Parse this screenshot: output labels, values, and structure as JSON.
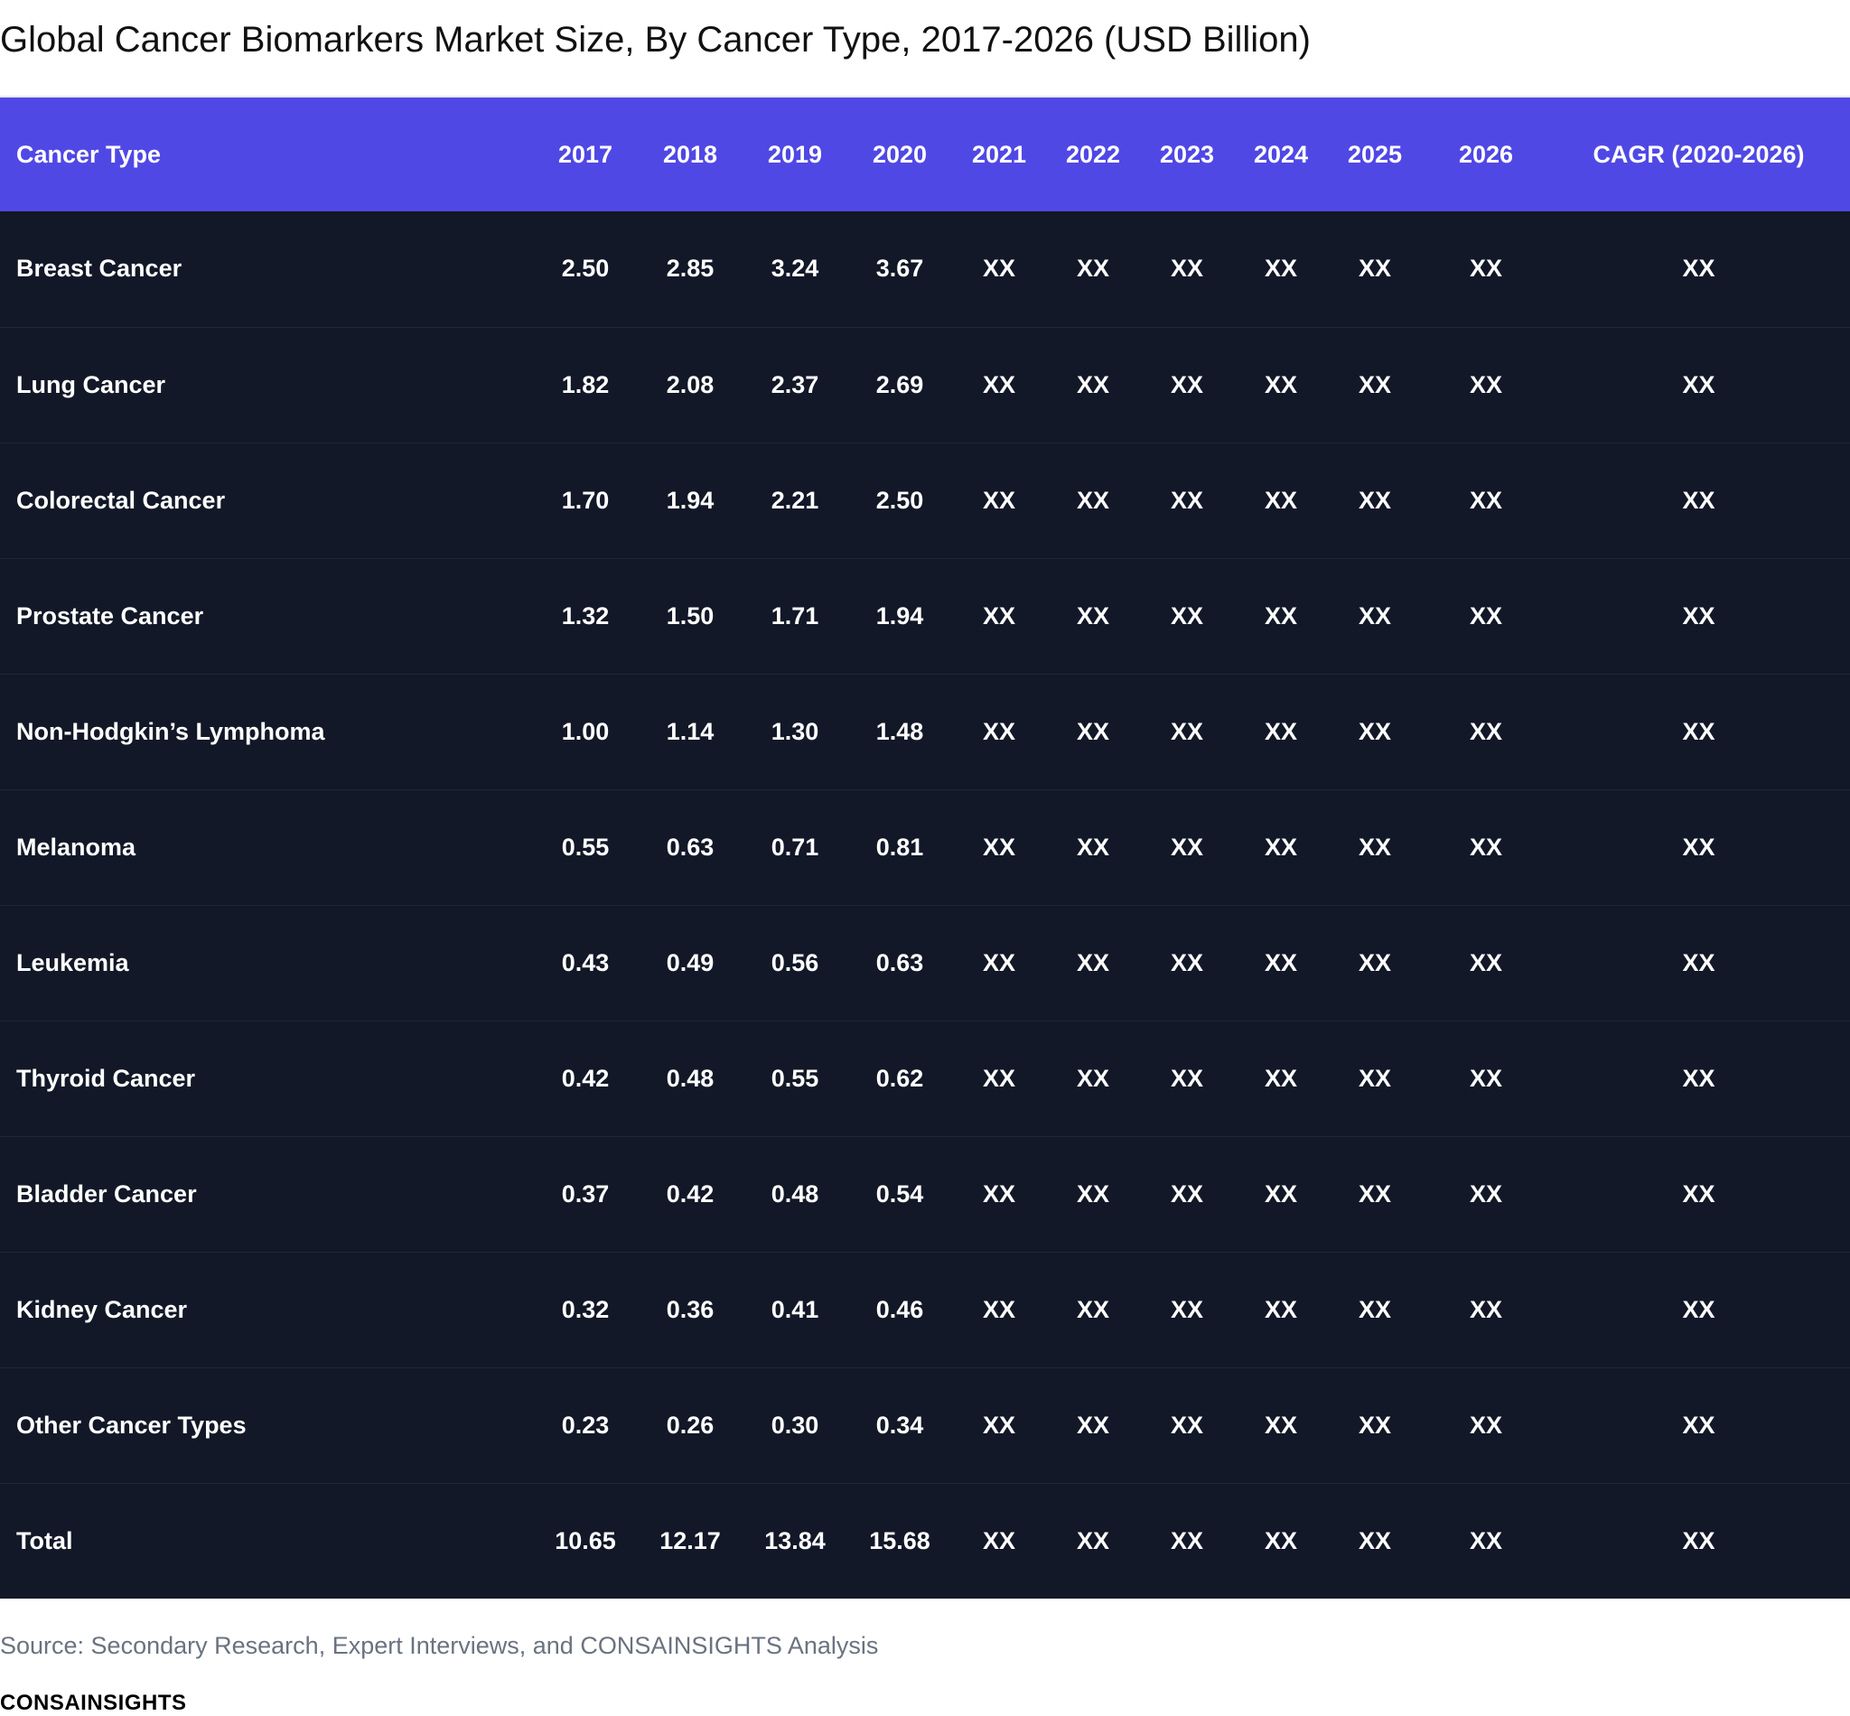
{
  "title": "Global Cancer Biomarkers Market Size, By Cancer Type, 2017-2026 (USD Billion)",
  "source": "Source: Secondary Research, Expert Interviews, and CONSAINSIGHTS Analysis",
  "brand": "CONSAINSIGHTS",
  "colors": {
    "header_bg": "#5048e5",
    "body_bg": "#121827",
    "text": "#ffffff",
    "source_text": "#6b7280"
  },
  "chart_data": {
    "type": "table",
    "title": "Global Cancer Biomarkers Market Size, By Cancer Type, 2017-2026 (USD Billion)",
    "columns": [
      "Cancer Type",
      "2017",
      "2018",
      "2019",
      "2020",
      "2021",
      "2022",
      "2023",
      "2024",
      "2025",
      "2026",
      "CAGR (2020-2026)"
    ],
    "rows": [
      [
        "Breast Cancer",
        "2.50",
        "2.85",
        "3.24",
        "3.67",
        "XX",
        "XX",
        "XX",
        "XX",
        "XX",
        "XX",
        "XX"
      ],
      [
        "Lung Cancer",
        "1.82",
        "2.08",
        "2.37",
        "2.69",
        "XX",
        "XX",
        "XX",
        "XX",
        "XX",
        "XX",
        "XX"
      ],
      [
        "Colorectal Cancer",
        "1.70",
        "1.94",
        "2.21",
        "2.50",
        "XX",
        "XX",
        "XX",
        "XX",
        "XX",
        "XX",
        "XX"
      ],
      [
        "Prostate Cancer",
        "1.32",
        "1.50",
        "1.71",
        "1.94",
        "XX",
        "XX",
        "XX",
        "XX",
        "XX",
        "XX",
        "XX"
      ],
      [
        "Non-Hodgkin’s Lymphoma",
        "1.00",
        "1.14",
        "1.30",
        "1.48",
        "XX",
        "XX",
        "XX",
        "XX",
        "XX",
        "XX",
        "XX"
      ],
      [
        "Melanoma",
        "0.55",
        "0.63",
        "0.71",
        "0.81",
        "XX",
        "XX",
        "XX",
        "XX",
        "XX",
        "XX",
        "XX"
      ],
      [
        "Leukemia",
        "0.43",
        "0.49",
        "0.56",
        "0.63",
        "XX",
        "XX",
        "XX",
        "XX",
        "XX",
        "XX",
        "XX"
      ],
      [
        "Thyroid Cancer",
        "0.42",
        "0.48",
        "0.55",
        "0.62",
        "XX",
        "XX",
        "XX",
        "XX",
        "XX",
        "XX",
        "XX"
      ],
      [
        "Bladder Cancer",
        "0.37",
        "0.42",
        "0.48",
        "0.54",
        "XX",
        "XX",
        "XX",
        "XX",
        "XX",
        "XX",
        "XX"
      ],
      [
        "Kidney Cancer",
        "0.32",
        "0.36",
        "0.41",
        "0.46",
        "XX",
        "XX",
        "XX",
        "XX",
        "XX",
        "XX",
        "XX"
      ],
      [
        "Other Cancer Types",
        "0.23",
        "0.26",
        "0.30",
        "0.34",
        "XX",
        "XX",
        "XX",
        "XX",
        "XX",
        "XX",
        "XX"
      ],
      [
        "Total",
        "10.65",
        "12.17",
        "13.84",
        "15.68",
        "XX",
        "XX",
        "XX",
        "XX",
        "XX",
        "XX",
        "XX"
      ]
    ]
  }
}
